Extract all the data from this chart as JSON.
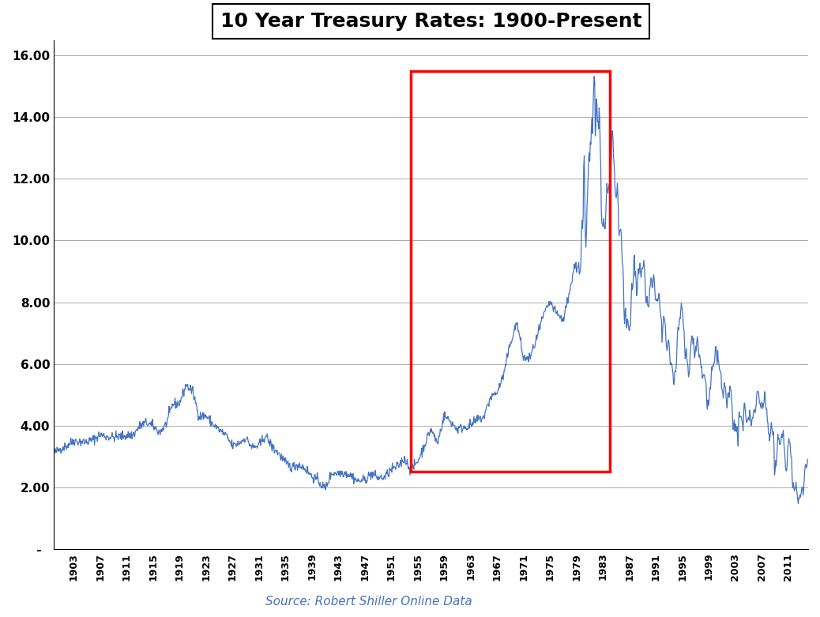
{
  "title": "10 Year Treasury Rates: 1900-Present",
  "source_text": "Source: Robert Shiller Online Data",
  "line_color": "#4472C4",
  "rect_color": "red",
  "rect_x1_year": 1954.0,
  "rect_x2_year": 1984.0,
  "rect_y1": 2.5,
  "rect_y2": 15.5,
  "ylim_min": 0,
  "ylim_max": 16.5,
  "ylabel_values": [
    0,
    2,
    4,
    6,
    8,
    10,
    12,
    14,
    16
  ],
  "ylabel_ticks": [
    " -  ",
    "2.00",
    "4.00",
    "6.00",
    "8.00",
    "10.00",
    "12.00",
    "14.00",
    "16.00"
  ],
  "background_color": "#ffffff",
  "title_fontsize": 18,
  "source_fontsize": 11,
  "xlim_min": 1900,
  "xlim_max": 2014
}
